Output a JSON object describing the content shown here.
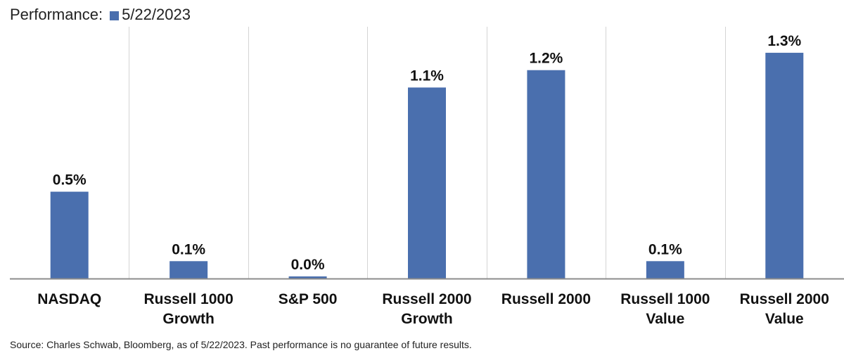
{
  "legend": {
    "title": "Performance:",
    "series_name": "5/22/2023"
  },
  "footer": {
    "source": "Source: Charles Schwab, Bloomberg, as of 5/22/2023.  Past performance is no guarantee of future results."
  },
  "chart_data": {
    "type": "bar",
    "categories": [
      [
        "NASDAQ"
      ],
      [
        "Russell 1000",
        "Growth"
      ],
      [
        "S&P 500"
      ],
      [
        "Russell 2000",
        "Growth"
      ],
      [
        "Russell 2000"
      ],
      [
        "Russell 1000",
        "Value"
      ],
      [
        "Russell 2000",
        "Value"
      ]
    ],
    "series": [
      {
        "name": "5/22/2023",
        "values": [
          0.5,
          0.1,
          0.0,
          1.1,
          1.2,
          0.1,
          1.3
        ],
        "labels": [
          "0.5%",
          "0.1%",
          "0.0%",
          "1.1%",
          "1.2%",
          "0.1%",
          "1.3%"
        ],
        "color": "#4a6fae"
      }
    ],
    "ylim": [
      0,
      1.45
    ],
    "grid": "vertical separators",
    "legend_position": "top-left"
  }
}
